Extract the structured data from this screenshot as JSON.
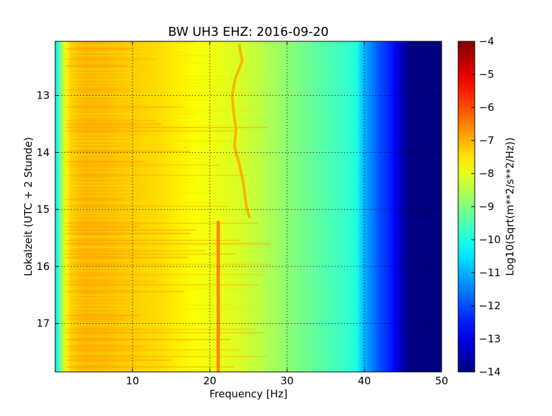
{
  "chart_data": {
    "type": "heatmap",
    "title": "BW UH3 EHZ: 2016-09-20",
    "xlabel": "Frequency [Hz]",
    "ylabel": "Lokalzeit (UTC + 2 Stunde)",
    "xlim": [
      0,
      50
    ],
    "ylim": [
      17.85,
      12.05
    ],
    "y_inverted": true,
    "x_ticks": [
      10,
      20,
      30,
      40,
      50
    ],
    "y_ticks": [
      13,
      14,
      15,
      16,
      17
    ],
    "grid": true,
    "colormap": "jet",
    "colorbar": {
      "label": "Log10(Sqrt(m**2/s**2/Hz))",
      "range": [
        -14,
        -4
      ],
      "ticks": [
        -4,
        -5,
        -6,
        -7,
        -8,
        -9,
        -10,
        -11,
        -12,
        -13,
        -14
      ]
    },
    "spectrum_profile": {
      "frequency_hz": [
        0,
        0.5,
        1,
        1.5,
        2,
        3,
        4,
        6,
        8,
        10,
        12,
        14,
        16,
        18,
        20,
        22,
        24,
        26,
        28,
        30,
        32,
        34,
        36,
        38,
        39,
        40,
        41,
        42,
        43,
        44,
        45,
        46,
        48,
        50
      ],
      "log10_amplitude": [
        -10.5,
        -9.5,
        -8.4,
        -7.7,
        -7.3,
        -7.1,
        -7.0,
        -7.05,
        -7.15,
        -7.25,
        -7.35,
        -7.45,
        -7.6,
        -7.8,
        -7.9,
        -8.0,
        -8.15,
        -8.35,
        -8.6,
        -8.85,
        -9.1,
        -9.35,
        -9.55,
        -9.75,
        -10.0,
        -11.0,
        -11.5,
        -12.0,
        -12.3,
        -12.8,
        -13.6,
        -14.0,
        -14.0,
        -14.0
      ]
    },
    "tremor_line": {
      "time_h": [
        12.1,
        12.4,
        12.7,
        13.0,
        13.3,
        13.6,
        13.9,
        14.2,
        14.5,
        14.8,
        15.0,
        15.15
      ],
      "frequency_hz": [
        23.8,
        24.2,
        23.3,
        22.9,
        23.1,
        23.4,
        23.2,
        23.8,
        24.3,
        24.6,
        24.8,
        25.2
      ],
      "log10_amplitude": -7.0
    },
    "steady_line": {
      "time_h": [
        15.2,
        17.85
      ],
      "frequency_hz": [
        21.1,
        21.1
      ],
      "log10_amplitude": -6.6
    }
  }
}
